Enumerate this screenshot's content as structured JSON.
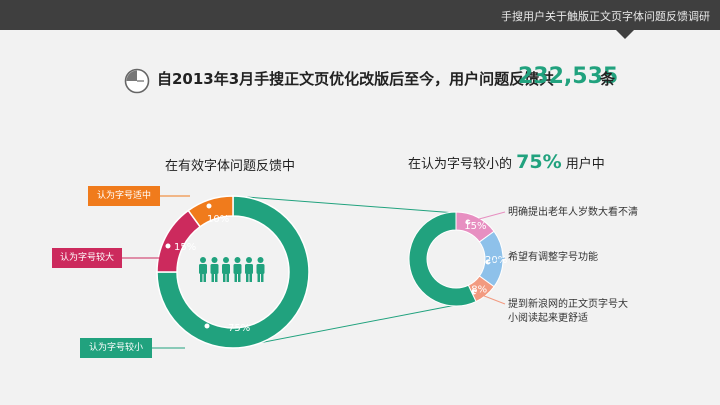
{
  "header": {
    "title": "手搜用户关于触版正文页字体问题反馈调研"
  },
  "headline": {
    "text": "自2013年3月手搜正文页优化改版后至今，用户问题反馈共",
    "count": "232,535",
    "unit": "条",
    "icon": "clock-icon"
  },
  "left_chart": {
    "subtitle": "在有效字体问题反馈中",
    "icon": "people-icon",
    "slices": [
      {
        "label": "认为字号较小",
        "value": 75,
        "display": "75%",
        "color": "#21a27e"
      },
      {
        "label": "认为字号较大",
        "value": 15,
        "display": "15%",
        "color": "#cc2a5d"
      },
      {
        "label": "认为字号适中",
        "value": 10,
        "display": "10%",
        "color": "#f07b1c"
      }
    ]
  },
  "right_chart": {
    "subtitle_prefix": "在认为字号较小的",
    "subtitle_pct": "75%",
    "subtitle_suffix": "用户中",
    "slices": [
      {
        "label": "明确提出老年人岁数大看不清",
        "value": 15,
        "display": "15%",
        "color": "#e78fc1"
      },
      {
        "label": "希望有调整字号功能",
        "value": 20,
        "display": "20%",
        "color": "#8ec1ea"
      },
      {
        "label": "提到新浪网的正文页字号大小阅读起来更舒适",
        "value": 8,
        "display": "8%",
        "color": "#f29a80"
      },
      {
        "label": "",
        "value": 57,
        "display": "",
        "color": "#21a27e"
      }
    ]
  }
}
